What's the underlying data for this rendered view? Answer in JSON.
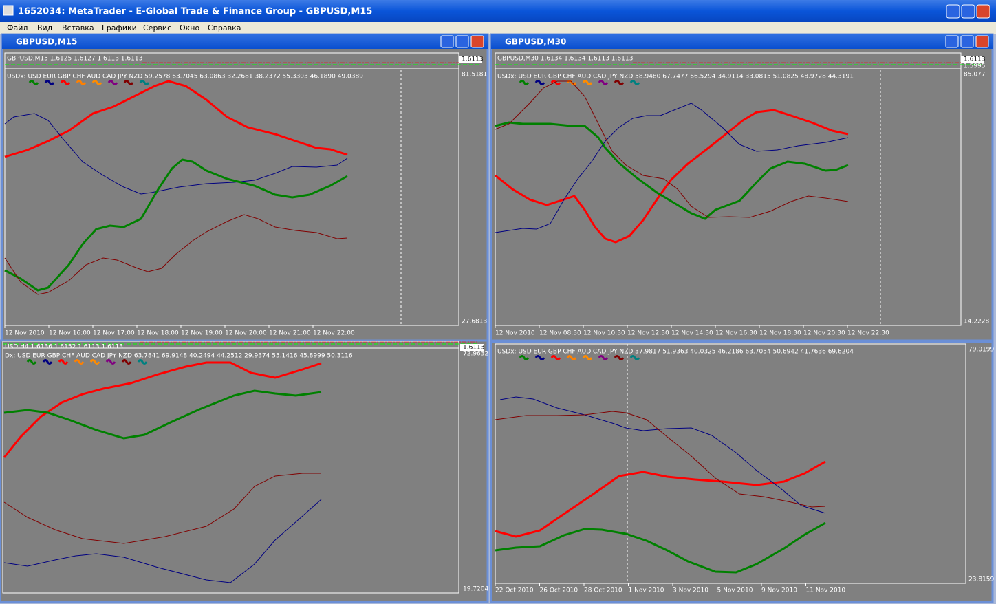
{
  "app_title": "1652034: MetaTrader - E-Global Trade & Finance Group - GBPUSD,M15",
  "menu": [
    "Файл",
    "Вид",
    "Вставка",
    "Графики",
    "Сервис",
    "Окно",
    "Справка"
  ],
  "windows": [
    {
      "title": "GBPUSD,M15",
      "price_header": "GBPUSD,M15  1.6125 1.6127 1.6113 1.6113",
      "price_labels": [
        "1.6113"
      ],
      "indicator": "USDx: USD EUR GBP CHF AUD CAD JPY NZD 59.2578 63.7045 63.0863 32.2681 38.2372 55.3303 46.1890 49.0389",
      "axis_top": "81.5181",
      "axis_bottom": "27.6813",
      "times": [
        "12 Nov 2010",
        "12 Nov 16:00",
        "12 Nov 17:00",
        "12 Nov 18:00",
        "12 Nov 19:00",
        "12 Nov 20:00",
        "12 Nov 21:00",
        "12 Nov 22:00"
      ]
    },
    {
      "title": "GBPUSD,M30",
      "price_header": "GBPUSD,M30  1.6134 1.6134 1.6113 1.6113",
      "price_labels": [
        "1.6113",
        "1.5995"
      ],
      "indicator": "USDx: USD EUR GBP CHF AUD CAD JPY NZD 58.9480 67.7477 66.5294 34.9114 33.0815 51.0825 48.9728 44.3191",
      "axis_top": "85.077",
      "axis_bottom": "14.2228",
      "times": [
        "12 Nov 2010",
        "12 Nov 08:30",
        "12 Nov 10:30",
        "12 Nov 12:30",
        "12 Nov 14:30",
        "12 Nov 16:30",
        "12 Nov 18:30",
        "12 Nov 20:30",
        "12 Nov 22:30"
      ]
    },
    {
      "price_header": "USD,H4  1.6136 1.6152 1.6113 1.6113",
      "price_labels": [
        "1.6113"
      ],
      "indicator": "Dx: USD EUR GBP CHF AUD CAD JPY NZD 63.7841 69.9148 40.2494 44.2512 29.9374 55.1416 45.8999 50.3116",
      "axis_top": "72.9632",
      "axis_bottom": "19.7204"
    },
    {
      "indicator": "USDx: USD EUR GBP CHF AUD CAD JPY NZD 37.9817 51.9363 40.0325 46.2186 63.7054 50.6942 41.7636 69.6204",
      "axis_top": "79.0199",
      "axis_bottom": "23.8159",
      "times": [
        "22 Oct 2010",
        "26 Oct 2010",
        "28 Oct 2010",
        "1 Nov 2010",
        "3 Nov 2010",
        "5 Nov 2010",
        "9 Nov 2010",
        "11 Nov 2010"
      ]
    }
  ]
}
